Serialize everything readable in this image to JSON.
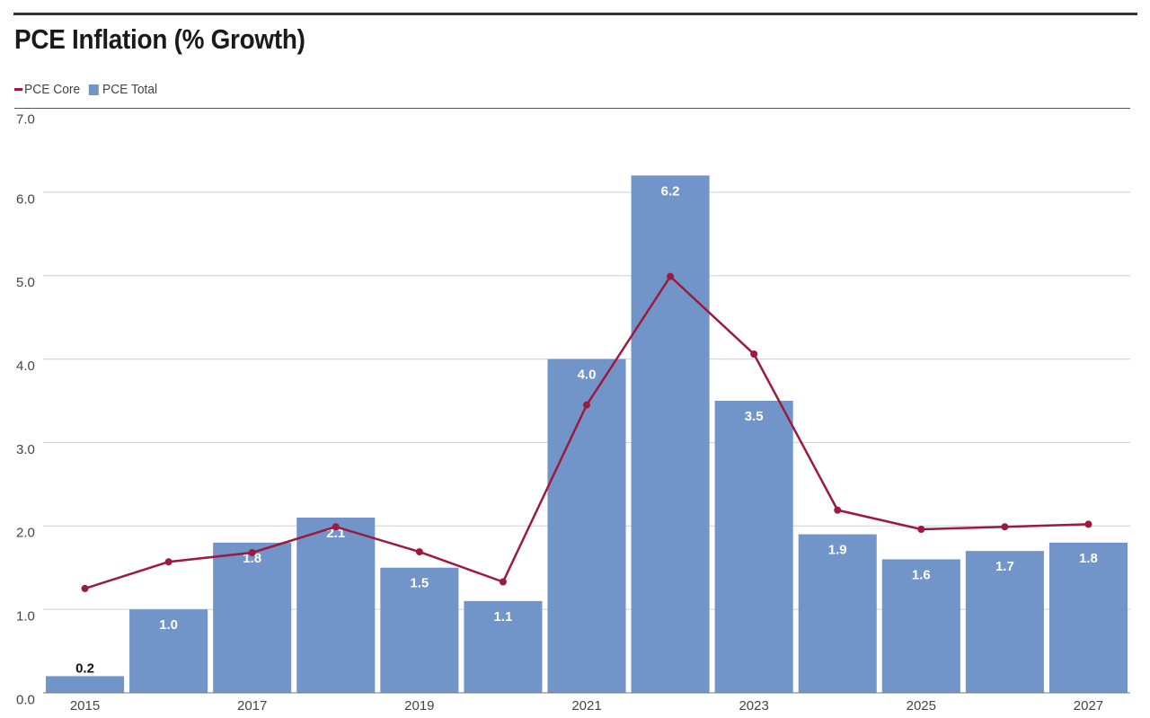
{
  "header": {
    "title": "PCE Inflation (% Growth)"
  },
  "legend": {
    "core_label": "PCE Core",
    "total_label": "PCE Total"
  },
  "colors": {
    "bar": "#7195c8",
    "line": "#9b1a3d",
    "grid": "#cfcfcf",
    "axis_text": "#444444",
    "label_light": "#ffffff",
    "label_dark": "#111111"
  },
  "chart_data": {
    "type": "bar",
    "title": "PCE Inflation (% Growth)",
    "xlabel": "",
    "ylabel": "",
    "ylim": [
      0,
      7
    ],
    "y_ticks": [
      "0.0",
      "1.0",
      "2.0",
      "3.0",
      "4.0",
      "5.0",
      "6.0",
      "7.0"
    ],
    "categories": [
      "2015",
      "2016",
      "2017",
      "2018",
      "2019",
      "2020",
      "2021",
      "2022",
      "2023",
      "2024",
      "2025",
      "2026",
      "2027"
    ],
    "x_tick_labels": [
      "2015",
      "",
      "2017",
      "",
      "2019",
      "",
      "2021",
      "",
      "2023",
      "",
      "2025",
      "",
      "2027"
    ],
    "series": [
      {
        "name": "PCE Total",
        "type": "bar",
        "values": [
          0.2,
          1.0,
          1.8,
          2.1,
          1.5,
          1.1,
          4.0,
          6.2,
          3.5,
          1.9,
          1.6,
          1.7,
          1.8
        ],
        "labels": [
          "0.2",
          "1.0",
          "1.8",
          "2.1",
          "1.5",
          "1.1",
          "4.0",
          "6.2",
          "3.5",
          "1.9",
          "1.6",
          "1.7",
          "1.8"
        ]
      },
      {
        "name": "PCE Core",
        "type": "line",
        "values": [
          1.25,
          1.57,
          1.68,
          1.99,
          1.69,
          1.33,
          3.45,
          4.99,
          4.06,
          2.19,
          1.96,
          1.99,
          2.02
        ]
      }
    ],
    "legend_position": "top-left",
    "grid": true
  }
}
